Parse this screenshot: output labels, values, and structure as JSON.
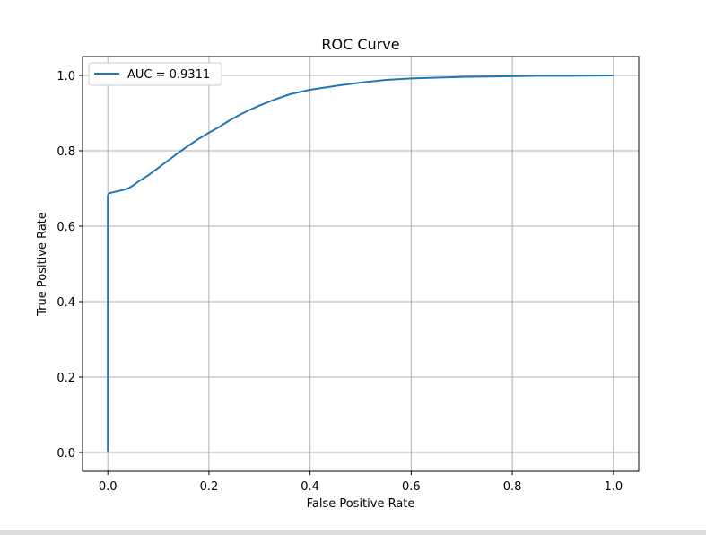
{
  "chart_data": {
    "type": "line",
    "title": "ROC Curve",
    "xlabel": "False Positive Rate",
    "ylabel": "True Positive Rate",
    "xlim": [
      -0.05,
      1.05
    ],
    "ylim": [
      -0.05,
      1.05
    ],
    "xticks": [
      "0.0",
      "0.2",
      "0.4",
      "0.6",
      "0.8",
      "1.0"
    ],
    "yticks": [
      "0.0",
      "0.2",
      "0.4",
      "0.6",
      "0.8",
      "1.0"
    ],
    "grid": true,
    "legend_position": "top-left",
    "series": [
      {
        "name": "AUC = 0.9311",
        "color": "#1f77b4",
        "x": [
          0.0,
          0.0,
          0.002,
          0.01,
          0.02,
          0.03,
          0.04,
          0.05,
          0.06,
          0.08,
          0.1,
          0.12,
          0.14,
          0.16,
          0.18,
          0.2,
          0.22,
          0.24,
          0.26,
          0.28,
          0.3,
          0.33,
          0.36,
          0.4,
          0.45,
          0.5,
          0.55,
          0.6,
          0.65,
          0.7,
          0.75,
          0.8,
          0.85,
          0.9,
          1.0
        ],
        "y": [
          0.0,
          0.68,
          0.687,
          0.69,
          0.693,
          0.696,
          0.7,
          0.708,
          0.718,
          0.735,
          0.755,
          0.775,
          0.795,
          0.814,
          0.832,
          0.848,
          0.863,
          0.88,
          0.895,
          0.908,
          0.92,
          0.936,
          0.95,
          0.962,
          0.972,
          0.981,
          0.988,
          0.992,
          0.994,
          0.996,
          0.997,
          0.998,
          0.999,
          0.999,
          1.0
        ]
      }
    ]
  }
}
